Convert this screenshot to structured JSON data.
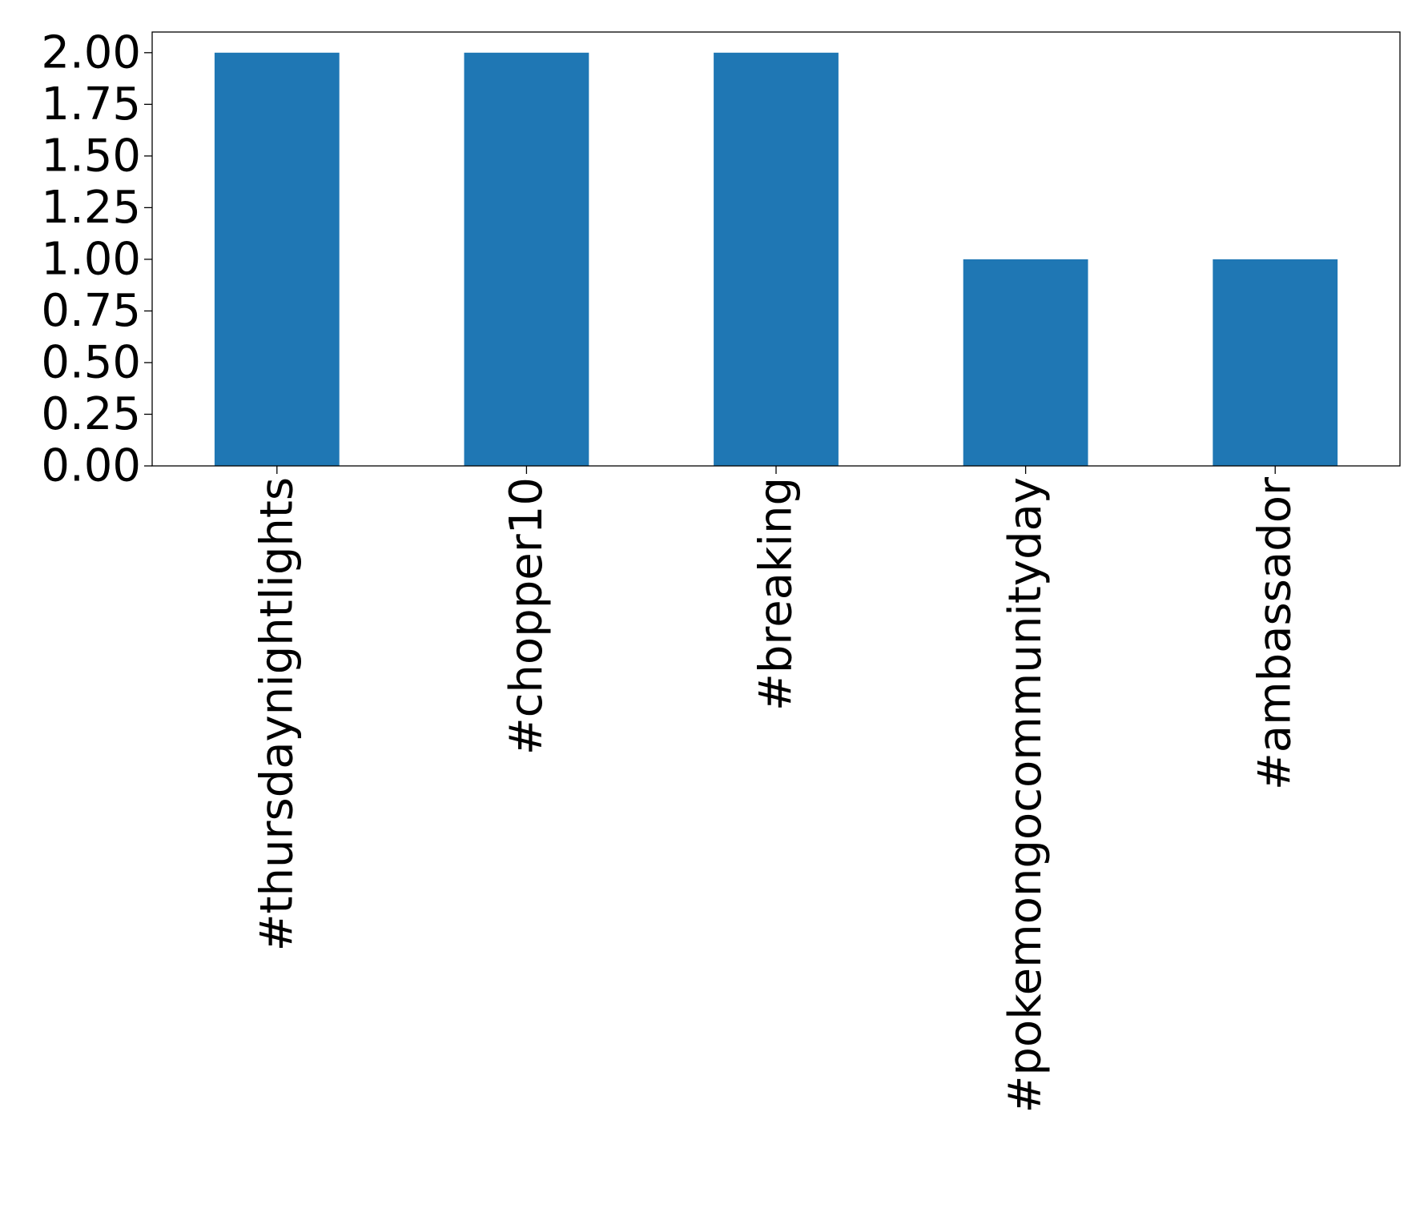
{
  "colors": {
    "bar": "#1f77b4",
    "axis": "#000000",
    "background": "#ffffff"
  },
  "chart_data": {
    "type": "bar",
    "categories": [
      "#thursdaynightlights",
      "#chopper10",
      "#breaking",
      "#pokemongocommunityday",
      "#ambassador"
    ],
    "values": [
      2,
      2,
      2,
      1,
      1
    ],
    "yticks": [
      "0.00",
      "0.25",
      "0.50",
      "0.75",
      "1.00",
      "1.25",
      "1.50",
      "1.75",
      "2.00"
    ],
    "ylim": [
      0,
      2.1
    ],
    "grid": false,
    "legend": "none"
  }
}
